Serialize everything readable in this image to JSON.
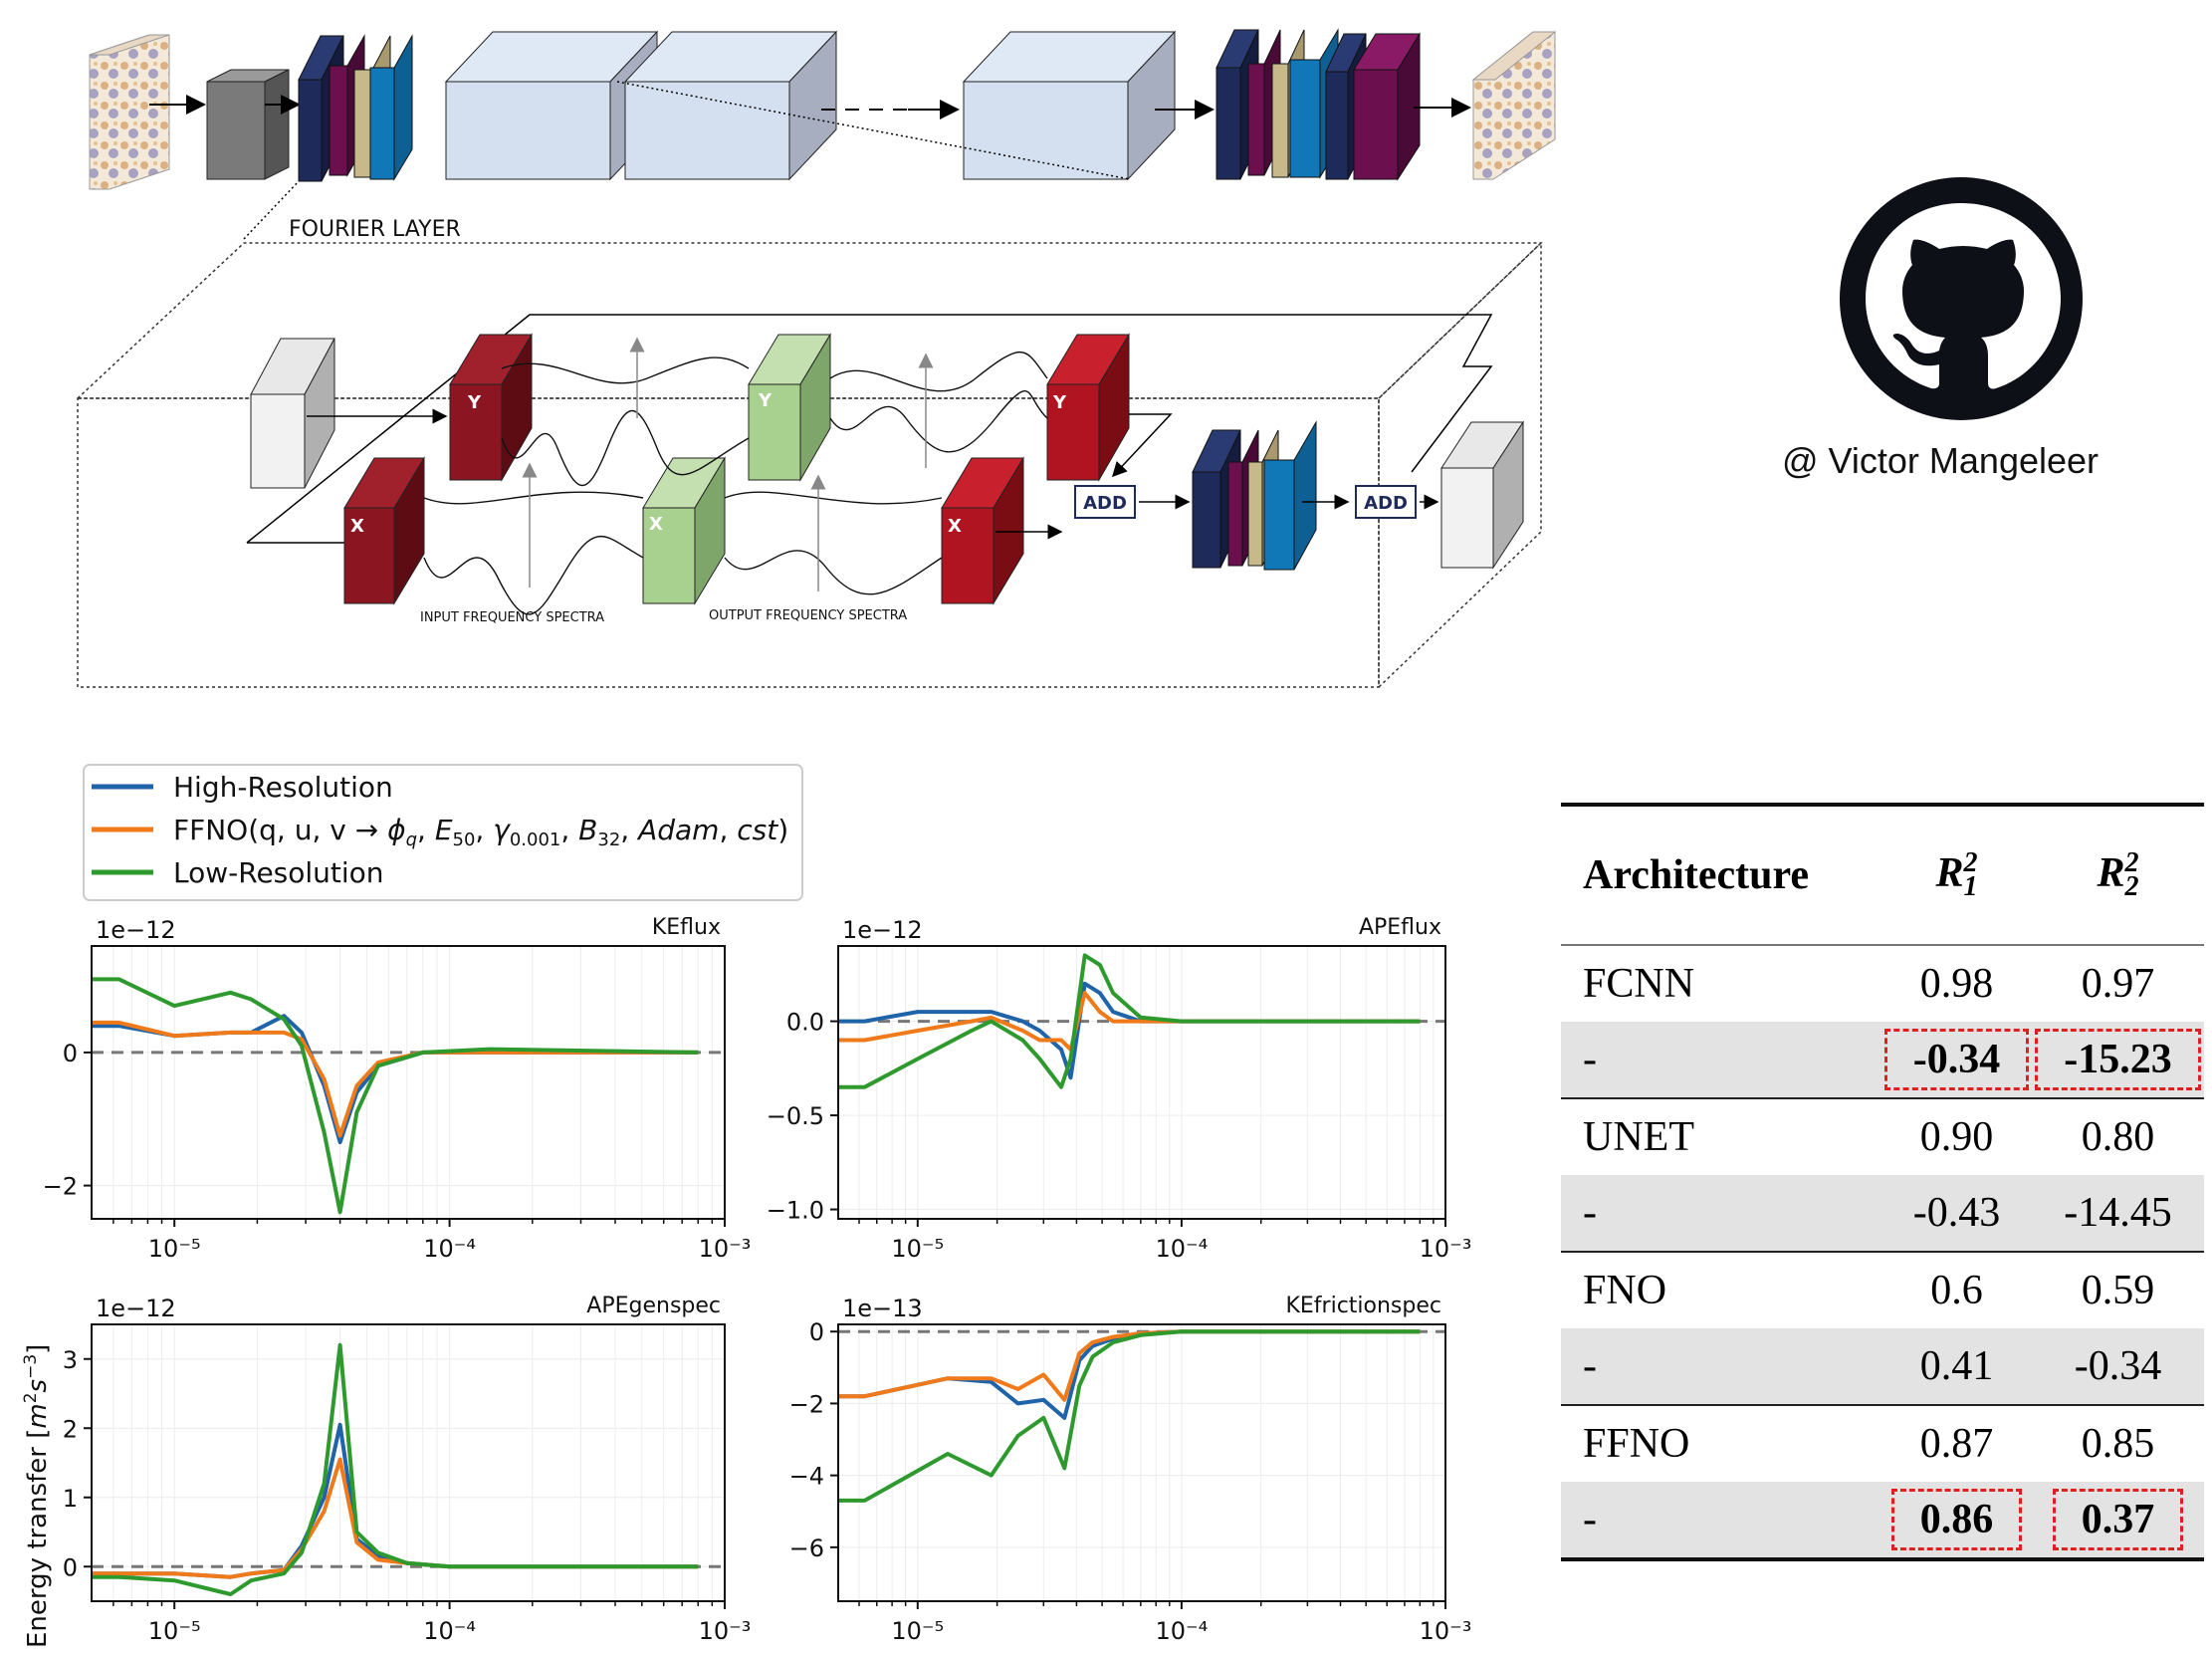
{
  "diagram": {
    "fourier_layer_label": "FOURIER LAYER",
    "input_spectra_label": "INPUT FREQUENCY SPECTRA",
    "output_spectra_label": "OUTPUT FREQUENCY SPECTRA",
    "add_label": "ADD",
    "y_label": "Y",
    "x_label": "X",
    "palette": {
      "navy": "#1e2a5a",
      "plum": "#6b0f4f",
      "khaki": "#c8b98a",
      "blue": "#1178b8",
      "darkred": "#8b1520",
      "green": "#a8d08e",
      "lightbox": "#d4e0f0"
    }
  },
  "credit": "@ Victor Mangeleer",
  "legend": [
    {
      "label": "High-Resolution",
      "color": "#1f63a8"
    },
    {
      "label": "FFNO(q, u, v → φ_q, E_50, γ_0.001, B_32, Adam, cst)",
      "color": "#f07a1a"
    },
    {
      "label": "Low-Resolution",
      "color": "#2e9a2e"
    }
  ],
  "y_axis_shared_label": "Energy transfer [m²s⁻³]",
  "chart_data": [
    {
      "type": "line",
      "title": "KEflux",
      "multiplier": "1e−12",
      "xscale": "log",
      "xlim": [
        5e-06,
        0.001
      ],
      "ylim": [
        -2.5,
        1.6
      ],
      "yticks": [
        -2,
        0
      ],
      "xticks": [
        "10⁻⁵",
        "10⁻⁴",
        "10⁻³"
      ],
      "zero_line": true,
      "series": [
        {
          "name": "High-Resolution",
          "x": [
            5e-06,
            6.3e-06,
            1e-05,
            1.6e-05,
            1.9e-05,
            2.5e-05,
            2.9e-05,
            3.5e-05,
            4e-05,
            4.6e-05,
            5.5e-05,
            8e-05,
            0.00014,
            0.0008
          ],
          "y": [
            0.4,
            0.4,
            0.25,
            0.3,
            0.3,
            0.55,
            0.3,
            -0.5,
            -1.35,
            -0.6,
            -0.2,
            0.0,
            0.0,
            0.0
          ]
        },
        {
          "name": "FFNO",
          "x": [
            5e-06,
            6.3e-06,
            1e-05,
            1.6e-05,
            1.9e-05,
            2.5e-05,
            2.9e-05,
            3.5e-05,
            4e-05,
            4.6e-05,
            5.5e-05,
            8e-05,
            0.00014,
            0.0008
          ],
          "y": [
            0.45,
            0.45,
            0.25,
            0.3,
            0.3,
            0.3,
            0.2,
            -0.4,
            -1.25,
            -0.5,
            -0.15,
            0.0,
            0.0,
            0.0
          ]
        },
        {
          "name": "Low-Resolution",
          "x": [
            5e-06,
            6.3e-06,
            1e-05,
            1.6e-05,
            1.9e-05,
            2.5e-05,
            2.9e-05,
            3.5e-05,
            4e-05,
            4.6e-05,
            5.5e-05,
            8e-05,
            0.00014,
            0.0008
          ],
          "y": [
            1.1,
            1.1,
            0.7,
            0.9,
            0.8,
            0.5,
            0.1,
            -1.2,
            -2.4,
            -0.9,
            -0.2,
            0.0,
            0.05,
            0.0
          ]
        }
      ]
    },
    {
      "type": "line",
      "title": "APEflux",
      "multiplier": "1e−12",
      "xscale": "log",
      "xlim": [
        5e-06,
        0.001
      ],
      "ylim": [
        -1.05,
        0.4
      ],
      "yticks": [
        -1.0,
        -0.5,
        0.0
      ],
      "xticks": [
        "10⁻⁵",
        "10⁻⁴",
        "10⁻³"
      ],
      "zero_line": true,
      "series": [
        {
          "name": "High-Resolution",
          "x": [
            5e-06,
            6.3e-06,
            1e-05,
            1.6e-05,
            1.9e-05,
            2.5e-05,
            2.9e-05,
            3.5e-05,
            3.8e-05,
            4.3e-05,
            4.9e-05,
            5.5e-05,
            7e-05,
            0.0001,
            0.0008
          ],
          "y": [
            0.0,
            0.0,
            0.05,
            0.05,
            0.05,
            0.0,
            -0.05,
            -0.15,
            -0.3,
            0.2,
            0.15,
            0.05,
            0.0,
            0.0,
            0.0
          ]
        },
        {
          "name": "FFNO",
          "x": [
            5e-06,
            6.3e-06,
            1e-05,
            1.6e-05,
            1.9e-05,
            2.5e-05,
            2.9e-05,
            3.5e-05,
            3.8e-05,
            4.3e-05,
            4.9e-05,
            5.5e-05,
            7e-05,
            0.0001,
            0.0008
          ],
          "y": [
            -0.1,
            -0.1,
            -0.05,
            0.0,
            0.02,
            -0.05,
            -0.1,
            -0.1,
            -0.15,
            0.15,
            0.05,
            0.0,
            0.0,
            0.0,
            0.0
          ]
        },
        {
          "name": "Low-Resolution",
          "x": [
            5e-06,
            6.3e-06,
            1e-05,
            1.6e-05,
            1.9e-05,
            2.5e-05,
            2.9e-05,
            3.5e-05,
            3.8e-05,
            4.3e-05,
            4.9e-05,
            5.5e-05,
            7e-05,
            0.0001,
            0.0008
          ],
          "y": [
            -0.35,
            -0.35,
            -0.2,
            -0.05,
            0.0,
            -0.1,
            -0.2,
            -0.35,
            -0.2,
            0.35,
            0.3,
            0.15,
            0.02,
            0.0,
            0.0
          ]
        }
      ]
    },
    {
      "type": "line",
      "title": "APEgenspec",
      "multiplier": "1e−12",
      "xscale": "log",
      "xlim": [
        5e-06,
        0.001
      ],
      "ylim": [
        -0.5,
        3.5
      ],
      "yticks": [
        0,
        1,
        2,
        3
      ],
      "xticks": [
        "10⁻⁵",
        "10⁻⁴",
        "10⁻³"
      ],
      "zero_line": true,
      "series": [
        {
          "name": "High-Resolution",
          "x": [
            5e-06,
            6.3e-06,
            1e-05,
            1.6e-05,
            1.9e-05,
            2.5e-05,
            2.9e-05,
            3.5e-05,
            4e-05,
            4.6e-05,
            5.5e-05,
            7e-05,
            0.0001,
            0.0008
          ],
          "y": [
            -0.1,
            -0.1,
            -0.1,
            -0.15,
            -0.1,
            -0.05,
            0.3,
            1.0,
            2.05,
            0.4,
            0.15,
            0.05,
            0.0,
            0.0
          ]
        },
        {
          "name": "FFNO",
          "x": [
            5e-06,
            6.3e-06,
            1e-05,
            1.6e-05,
            1.9e-05,
            2.5e-05,
            2.9e-05,
            3.5e-05,
            4e-05,
            4.6e-05,
            5.5e-05,
            7e-05,
            0.0001,
            0.0008
          ],
          "y": [
            -0.1,
            -0.1,
            -0.1,
            -0.15,
            -0.1,
            -0.05,
            0.25,
            0.8,
            1.55,
            0.35,
            0.1,
            0.05,
            0.0,
            0.0
          ]
        },
        {
          "name": "Low-Resolution",
          "x": [
            5e-06,
            6.3e-06,
            1e-05,
            1.6e-05,
            1.9e-05,
            2.5e-05,
            2.9e-05,
            3.5e-05,
            4e-05,
            4.6e-05,
            5.5e-05,
            7e-05,
            0.0001,
            0.0008
          ],
          "y": [
            -0.15,
            -0.15,
            -0.2,
            -0.4,
            -0.2,
            -0.1,
            0.2,
            1.2,
            3.2,
            0.5,
            0.2,
            0.05,
            0.0,
            0.0
          ]
        }
      ]
    },
    {
      "type": "line",
      "title": "KEfrictionspec",
      "multiplier": "1e−13",
      "xscale": "log",
      "xlim": [
        5e-06,
        0.001
      ],
      "ylim": [
        -7.5,
        0.2
      ],
      "yticks": [
        -6,
        -4,
        -2,
        0
      ],
      "xticks": [
        "10⁻⁵",
        "10⁻⁴",
        "10⁻³"
      ],
      "zero_line": true,
      "series": [
        {
          "name": "High-Resolution",
          "x": [
            5e-06,
            6.3e-06,
            1.3e-05,
            1.9e-05,
            2.4e-05,
            3e-05,
            3.6e-05,
            4.1e-05,
            4.6e-05,
            5.5e-05,
            7e-05,
            0.0001,
            0.0008
          ],
          "y": [
            -1.8,
            -1.8,
            -1.3,
            -1.4,
            -2.0,
            -1.9,
            -2.4,
            -0.8,
            -0.4,
            -0.2,
            -0.05,
            0.0,
            0.0
          ]
        },
        {
          "name": "FFNO",
          "x": [
            5e-06,
            6.3e-06,
            1.3e-05,
            1.9e-05,
            2.4e-05,
            3e-05,
            3.6e-05,
            4.1e-05,
            4.6e-05,
            5.5e-05,
            7e-05,
            0.0001,
            0.0008
          ],
          "y": [
            -1.8,
            -1.8,
            -1.3,
            -1.3,
            -1.6,
            -1.2,
            -1.9,
            -0.6,
            -0.3,
            -0.15,
            -0.05,
            0.0,
            0.0
          ]
        },
        {
          "name": "Low-Resolution",
          "x": [
            5e-06,
            6.3e-06,
            1.3e-05,
            1.9e-05,
            2.4e-05,
            3e-05,
            3.6e-05,
            4.1e-05,
            4.6e-05,
            5.5e-05,
            7e-05,
            0.0001,
            0.0008
          ],
          "y": [
            -4.7,
            -4.7,
            -3.4,
            -4.0,
            -2.9,
            -2.4,
            -3.8,
            -1.5,
            -0.7,
            -0.3,
            -0.1,
            0.0,
            0.0
          ]
        }
      ]
    }
  ],
  "table": {
    "headers": [
      "Architecture",
      "R",
      "R"
    ],
    "header_sub": [
      "1",
      "2"
    ],
    "header_sup": "2",
    "rows": [
      {
        "arch": "FCNN",
        "r1": "0.98",
        "r2": "0.97",
        "shaded": false,
        "bold": false,
        "boxed": false
      },
      {
        "arch": "-",
        "r1": "-0.34",
        "r2": "-15.23",
        "shaded": true,
        "bold": true,
        "boxed": true
      },
      {
        "arch": "UNET",
        "r1": "0.90",
        "r2": "0.80",
        "shaded": false,
        "bold": false,
        "boxed": false
      },
      {
        "arch": "-",
        "r1": "-0.43",
        "r2": "-14.45",
        "shaded": true,
        "bold": false,
        "boxed": false
      },
      {
        "arch": "FNO",
        "r1": "0.6",
        "r2": "0.59",
        "shaded": false,
        "bold": false,
        "boxed": false
      },
      {
        "arch": "-",
        "r1": "0.41",
        "r2": "-0.34",
        "shaded": true,
        "bold": false,
        "boxed": false
      },
      {
        "arch": "FFNO",
        "r1": "0.87",
        "r2": "0.85",
        "shaded": false,
        "bold": false,
        "boxed": false
      },
      {
        "arch": "-",
        "r1": "0.86",
        "r2": "0.37",
        "shaded": true,
        "bold": true,
        "boxed": true
      }
    ]
  }
}
